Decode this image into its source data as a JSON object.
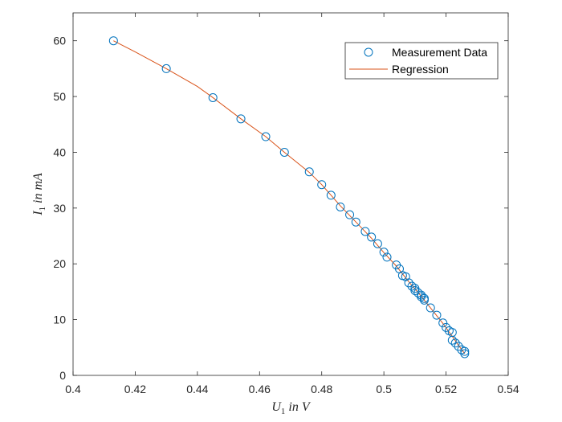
{
  "chart_data": {
    "type": "scatter",
    "title": "",
    "xlabel": "U_1 in V",
    "ylabel": "I_1 in mA",
    "xlim": [
      0.4,
      0.54
    ],
    "ylim": [
      0,
      65
    ],
    "xticks": [
      0.4,
      0.42,
      0.44,
      0.46,
      0.48,
      0.5,
      0.52,
      0.54
    ],
    "xtick_labels": [
      "0.4",
      "0.42",
      "0.44",
      "0.46",
      "0.48",
      "0.5",
      "0.52",
      "0.54"
    ],
    "yticks": [
      0,
      10,
      20,
      30,
      40,
      50,
      60
    ],
    "ytick_labels": [
      "0",
      "10",
      "20",
      "30",
      "40",
      "50",
      "60"
    ],
    "grid": false,
    "legend": {
      "position": "top-right",
      "entries": [
        {
          "label": "Measurement Data",
          "marker": "circle",
          "color": "#0072BD"
        },
        {
          "label": "Regression",
          "marker": "line",
          "color": "#D95319"
        }
      ]
    },
    "series": [
      {
        "name": "Measurement Data",
        "kind": "scatter",
        "color": "#0072BD",
        "points": [
          [
            0.413,
            60.0
          ],
          [
            0.43,
            55.0
          ],
          [
            0.445,
            49.8
          ],
          [
            0.454,
            46.0
          ],
          [
            0.462,
            42.8
          ],
          [
            0.468,
            40.0
          ],
          [
            0.476,
            36.5
          ],
          [
            0.48,
            34.2
          ],
          [
            0.483,
            32.3
          ],
          [
            0.486,
            30.2
          ],
          [
            0.489,
            28.8
          ],
          [
            0.491,
            27.5
          ],
          [
            0.494,
            25.8
          ],
          [
            0.496,
            24.8
          ],
          [
            0.498,
            23.6
          ],
          [
            0.5,
            22.1
          ],
          [
            0.501,
            21.2
          ],
          [
            0.504,
            19.8
          ],
          [
            0.505,
            19.1
          ],
          [
            0.506,
            17.9
          ],
          [
            0.507,
            17.7
          ],
          [
            0.508,
            16.6
          ],
          [
            0.509,
            16.0
          ],
          [
            0.51,
            15.6
          ],
          [
            0.51,
            15.2
          ],
          [
            0.511,
            14.8
          ],
          [
            0.512,
            14.4
          ],
          [
            0.512,
            14.1
          ],
          [
            0.513,
            13.8
          ],
          [
            0.513,
            13.5
          ],
          [
            0.515,
            12.1
          ],
          [
            0.517,
            10.8
          ],
          [
            0.519,
            9.4
          ],
          [
            0.52,
            8.6
          ],
          [
            0.521,
            8.0
          ],
          [
            0.522,
            7.7
          ],
          [
            0.522,
            6.3
          ],
          [
            0.523,
            5.8
          ],
          [
            0.524,
            5.2
          ],
          [
            0.525,
            4.6
          ],
          [
            0.526,
            4.3
          ],
          [
            0.526,
            3.9
          ]
        ]
      },
      {
        "name": "Regression",
        "kind": "line",
        "color": "#D95319",
        "points": [
          [
            0.413,
            60.0
          ],
          [
            0.42,
            58.0
          ],
          [
            0.43,
            55.0
          ],
          [
            0.44,
            51.8
          ],
          [
            0.445,
            49.8
          ],
          [
            0.454,
            46.0
          ],
          [
            0.462,
            42.8
          ],
          [
            0.468,
            40.0
          ],
          [
            0.476,
            36.4
          ],
          [
            0.48,
            34.2
          ],
          [
            0.486,
            30.4
          ],
          [
            0.491,
            27.5
          ],
          [
            0.496,
            24.6
          ],
          [
            0.5,
            22.0
          ],
          [
            0.504,
            19.6
          ],
          [
            0.508,
            16.8
          ],
          [
            0.512,
            14.2
          ],
          [
            0.515,
            12.1
          ],
          [
            0.519,
            9.3
          ],
          [
            0.522,
            7.0
          ],
          [
            0.524,
            5.4
          ],
          [
            0.526,
            3.9
          ]
        ]
      }
    ]
  }
}
